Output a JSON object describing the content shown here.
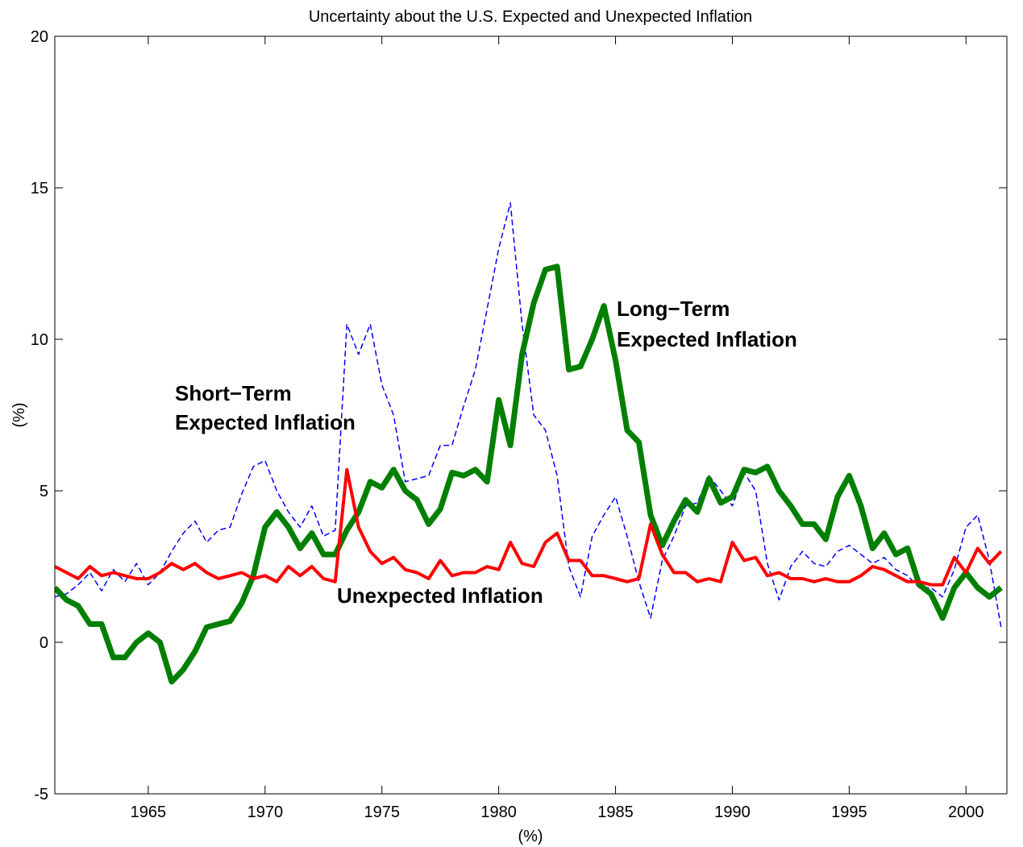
{
  "chart_data": {
    "type": "line",
    "title": "Uncertainty about the U.S. Expected and Unexpected Inflation",
    "xlabel": "(%)",
    "ylabel": "(%)",
    "annotations": [
      "Short−Term",
      "Expected Inflation",
      "Long−Term",
      "Expected Inflation",
      "Unexpected Inflation"
    ],
    "x": [
      1961,
      1961.5,
      1962,
      1962.5,
      1963,
      1963.5,
      1964,
      1964.5,
      1965,
      1965.5,
      1966,
      1966.5,
      1967,
      1967.5,
      1968,
      1968.5,
      1969,
      1969.5,
      1970,
      1970.5,
      1971,
      1971.5,
      1972,
      1972.5,
      1973,
      1973.5,
      1974,
      1974.5,
      1975,
      1975.5,
      1976,
      1976.5,
      1977,
      1977.5,
      1978,
      1978.5,
      1979,
      1979.5,
      1980,
      1980.5,
      1981,
      1981.5,
      1982,
      1982.5,
      1983,
      1983.5,
      1984,
      1984.5,
      1985,
      1985.5,
      1986,
      1986.5,
      1987,
      1987.5,
      1988,
      1988.5,
      1989,
      1989.5,
      1990,
      1990.5,
      1991,
      1991.5,
      1992,
      1992.5,
      1993,
      1993.5,
      1994,
      1994.5,
      1995,
      1995.5,
      1996,
      1996.5,
      1997,
      1997.5,
      1998,
      1998.5,
      1999,
      1999.5,
      2000,
      2000.5,
      2001,
      2001.5
    ],
    "series": [
      {
        "color": "#0000ff",
        "dashed": true,
        "width": 1.5,
        "values": [
          1.5,
          1.6,
          1.9,
          2.3,
          1.7,
          2.4,
          2.0,
          2.6,
          1.9,
          2.3,
          3.0,
          3.6,
          4.0,
          3.3,
          3.7,
          3.8,
          4.9,
          5.8,
          6.0,
          5.0,
          4.3,
          3.8,
          4.5,
          3.5,
          3.7,
          10.5,
          9.5,
          10.5,
          8.5,
          7.5,
          5.3,
          5.4,
          5.5,
          6.5,
          6.5,
          7.8,
          9.0,
          11.0,
          13.0,
          14.5,
          10.5,
          7.5,
          7.0,
          5.5,
          2.5,
          1.5,
          3.5,
          4.2,
          4.8,
          3.5,
          2.0,
          0.8,
          2.7,
          3.5,
          4.5,
          4.6,
          5.5,
          5.0,
          4.5,
          5.6,
          5.0,
          2.6,
          1.4,
          2.5,
          3.0,
          2.6,
          2.5,
          3.0,
          3.2,
          2.9,
          2.6,
          2.8,
          2.4,
          2.2,
          1.8,
          1.8,
          1.5,
          2.4,
          3.8,
          4.2,
          2.7,
          0.5
        ]
      },
      {
        "color": "#007f00",
        "dashed": false,
        "width": 7,
        "values": [
          1.8,
          1.4,
          1.2,
          0.6,
          0.6,
          -0.5,
          -0.5,
          0.0,
          0.3,
          0.0,
          -1.3,
          -0.9,
          -0.3,
          0.5,
          0.6,
          0.7,
          1.3,
          2.2,
          3.8,
          4.3,
          3.8,
          3.1,
          3.6,
          2.9,
          2.9,
          3.7,
          4.3,
          5.3,
          5.1,
          5.7,
          5.0,
          4.7,
          3.9,
          4.4,
          5.6,
          5.5,
          5.7,
          5.3,
          8.0,
          6.5,
          9.5,
          11.2,
          12.3,
          12.4,
          9.0,
          9.1,
          10.0,
          11.1,
          9.3,
          7.0,
          6.6,
          4.2,
          3.2,
          4.0,
          4.7,
          4.3,
          5.4,
          4.6,
          4.8,
          5.7,
          5.6,
          5.8,
          5.0,
          4.5,
          3.9,
          3.9,
          3.4,
          4.8,
          5.5,
          4.5,
          3.1,
          3.6,
          2.9,
          3.1,
          1.9,
          1.6,
          0.8,
          1.8,
          2.3,
          1.8,
          1.5,
          1.8
        ]
      },
      {
        "color": "#ff0000",
        "dashed": false,
        "width": 4,
        "values": [
          2.5,
          2.3,
          2.1,
          2.5,
          2.2,
          2.3,
          2.2,
          2.1,
          2.1,
          2.3,
          2.6,
          2.4,
          2.6,
          2.3,
          2.1,
          2.2,
          2.3,
          2.1,
          2.2,
          2.0,
          2.5,
          2.2,
          2.5,
          2.1,
          2.0,
          5.7,
          3.8,
          3.0,
          2.6,
          2.8,
          2.4,
          2.3,
          2.1,
          2.7,
          2.2,
          2.3,
          2.3,
          2.5,
          2.4,
          3.3,
          2.6,
          2.5,
          3.3,
          3.6,
          2.7,
          2.7,
          2.2,
          2.2,
          2.1,
          2.0,
          2.1,
          3.9,
          2.9,
          2.3,
          2.3,
          2.0,
          2.1,
          2.0,
          3.3,
          2.7,
          2.8,
          2.2,
          2.3,
          2.1,
          2.1,
          2.0,
          2.1,
          2.0,
          2.0,
          2.2,
          2.5,
          2.4,
          2.2,
          2.0,
          2.0,
          1.9,
          1.9,
          2.8,
          2.3,
          3.1,
          2.6,
          3.0
        ]
      }
    ],
    "xlim": [
      1961,
      2001.75
    ],
    "xticks": [
      1965,
      1970,
      1975,
      1980,
      1985,
      1990,
      1995,
      2000
    ],
    "ylim": [
      -5,
      20
    ],
    "yticks": [
      -5,
      0,
      5,
      10,
      15,
      20
    ],
    "grid": false
  }
}
